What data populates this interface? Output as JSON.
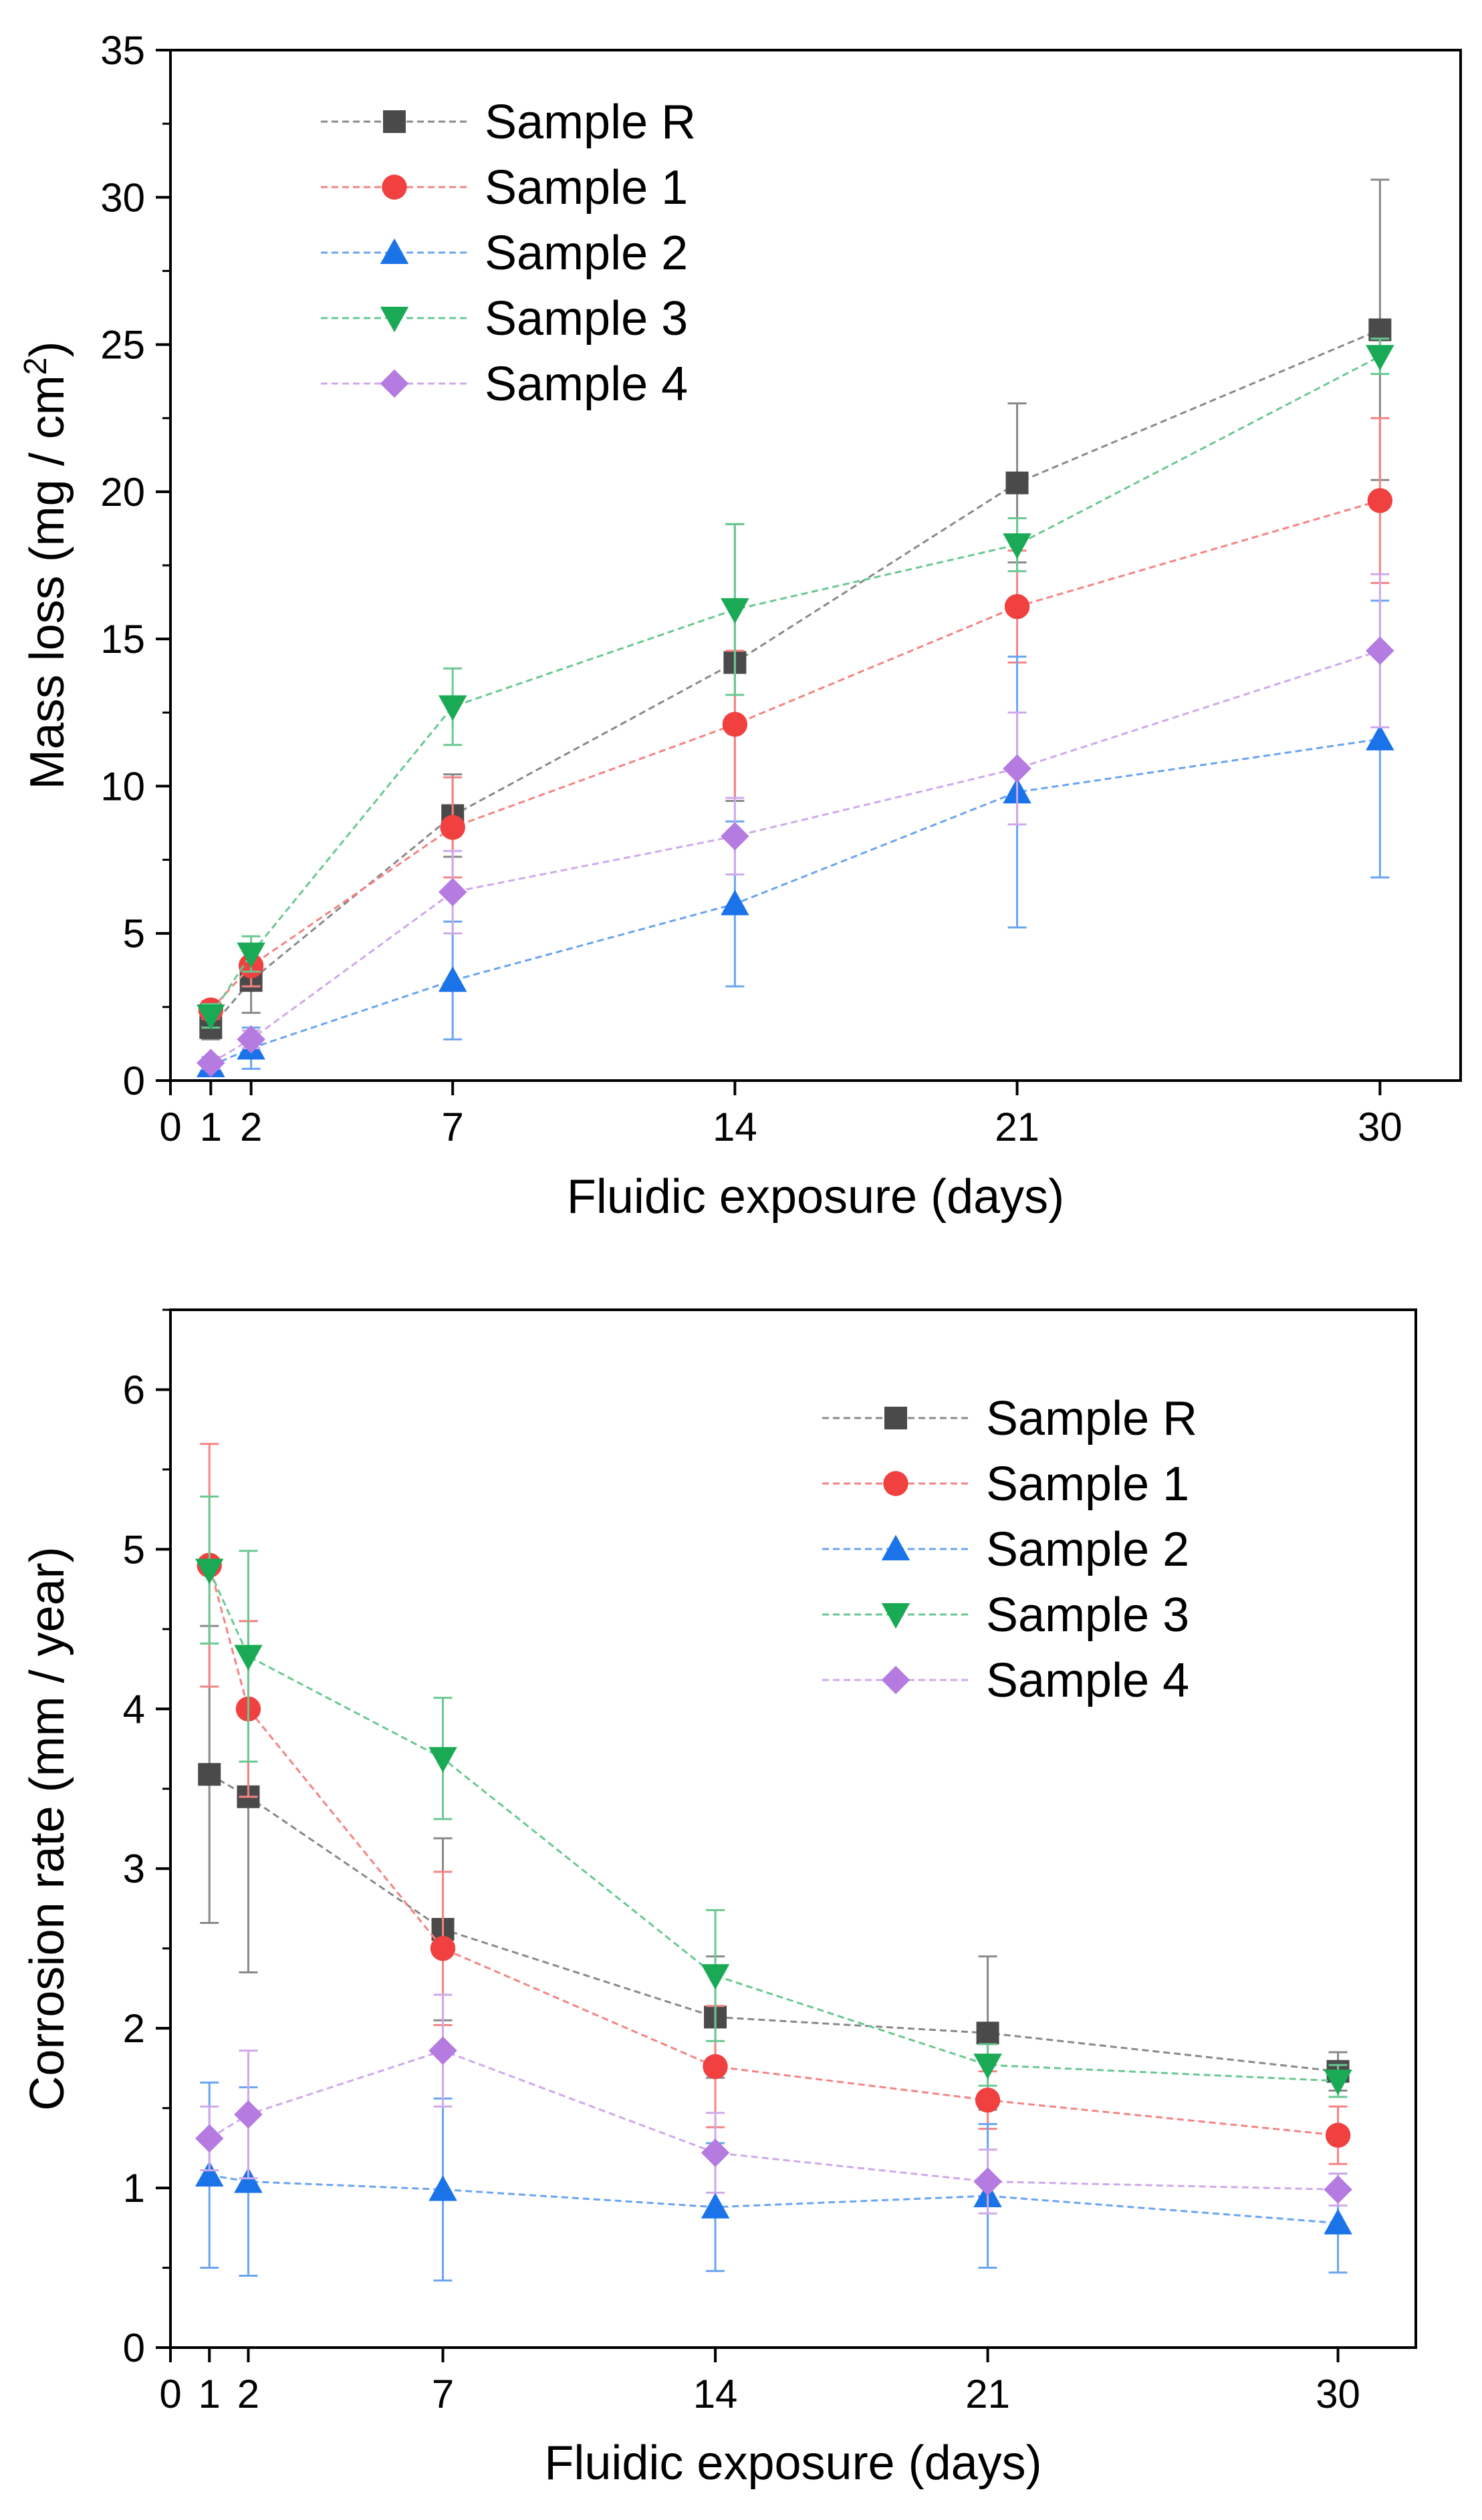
{
  "chart_data": [
    {
      "type": "line",
      "xlabel": "Fluidic exposure (days)",
      "ylabel": "Mass loss (mg / cm",
      "ylabel_sup": "2",
      "ylabel_end": ")",
      "xlim": [
        0,
        32
      ],
      "ylim": [
        0,
        35
      ],
      "x_ticks": [
        0,
        1,
        2,
        7,
        14,
        21,
        30
      ],
      "y_ticks": [
        0,
        5,
        10,
        15,
        20,
        25,
        30,
        35
      ],
      "legend_position": "top-left",
      "grid": false,
      "x": [
        1,
        2,
        7,
        14,
        21,
        30
      ],
      "series": [
        {
          "name": "Sample R",
          "marker": "square",
          "color": "#4a4a4a",
          "values": [
            1.8,
            3.4,
            9.0,
            14.2,
            20.3,
            25.5
          ],
          "errors": [
            0.4,
            1.1,
            1.4,
            4.7,
            2.7,
            5.1
          ]
        },
        {
          "name": "Sample 1",
          "marker": "circle",
          "color": "#f04040",
          "values": [
            2.4,
            3.9,
            8.6,
            12.1,
            16.1,
            19.7
          ],
          "errors": [
            0.3,
            0.7,
            1.7,
            2.5,
            1.9,
            2.8
          ]
        },
        {
          "name": "Sample 2",
          "marker": "triangle-up",
          "color": "#1a73e8",
          "values": [
            0.5,
            1.1,
            3.4,
            6.0,
            9.8,
            11.6
          ],
          "errors": [
            0.3,
            0.7,
            2.0,
            2.8,
            4.6,
            4.7
          ]
        },
        {
          "name": "Sample 3",
          "marker": "triangle-down",
          "color": "#1aaa55",
          "values": [
            2.2,
            4.3,
            12.7,
            16.0,
            18.2,
            24.6
          ],
          "errors": [
            0.4,
            0.6,
            1.3,
            2.9,
            0.9,
            0.6
          ]
        },
        {
          "name": "Sample 4",
          "marker": "diamond",
          "color": "#b57be0",
          "values": [
            0.6,
            1.4,
            6.4,
            8.3,
            10.6,
            14.6
          ],
          "errors": [
            0.2,
            0.3,
            1.4,
            1.3,
            1.9,
            2.6
          ]
        }
      ]
    },
    {
      "type": "line",
      "xlabel": "Fluidic exposure (days)",
      "ylabel": "Corrosion rate (mm / year)",
      "ylabel_sup": "",
      "ylabel_end": "",
      "xlim": [
        0,
        32
      ],
      "ylim": [
        0,
        6.5
      ],
      "x_ticks": [
        0,
        1,
        2,
        7,
        14,
        21,
        30
      ],
      "y_ticks": [
        0,
        1,
        2,
        3,
        4,
        5,
        6
      ],
      "legend_position": "top-right",
      "grid": false,
      "x": [
        1,
        2,
        7,
        14,
        21,
        30
      ],
      "series": [
        {
          "name": "Sample R",
          "marker": "square",
          "color": "#4a4a4a",
          "values": [
            3.59,
            3.45,
            2.62,
            2.07,
            1.97,
            1.73
          ],
          "errors": [
            0.93,
            1.1,
            0.57,
            0.38,
            0.48,
            0.12
          ]
        },
        {
          "name": "Sample 1",
          "marker": "circle",
          "color": "#f04040",
          "values": [
            4.9,
            4.0,
            2.5,
            1.76,
            1.55,
            1.33
          ],
          "errors": [
            0.76,
            0.55,
            0.48,
            0.38,
            0.18,
            0.18
          ]
        },
        {
          "name": "Sample 2",
          "marker": "triangle-up",
          "color": "#1a73e8",
          "values": [
            1.08,
            1.04,
            0.99,
            0.88,
            0.95,
            0.78
          ],
          "errors": [
            0.58,
            0.59,
            0.57,
            0.4,
            0.45,
            0.31
          ]
        },
        {
          "name": "Sample 3",
          "marker": "triangle-down",
          "color": "#1aaa55",
          "values": [
            4.87,
            4.33,
            3.69,
            2.33,
            1.77,
            1.67
          ],
          "errors": [
            0.46,
            0.66,
            0.38,
            0.41,
            0.13,
            0.1
          ]
        },
        {
          "name": "Sample 4",
          "marker": "diamond",
          "color": "#b57be0",
          "values": [
            1.31,
            1.46,
            1.86,
            1.22,
            1.04,
            0.99
          ],
          "errors": [
            0.2,
            0.4,
            0.35,
            0.25,
            0.2,
            0.1
          ]
        }
      ]
    }
  ]
}
